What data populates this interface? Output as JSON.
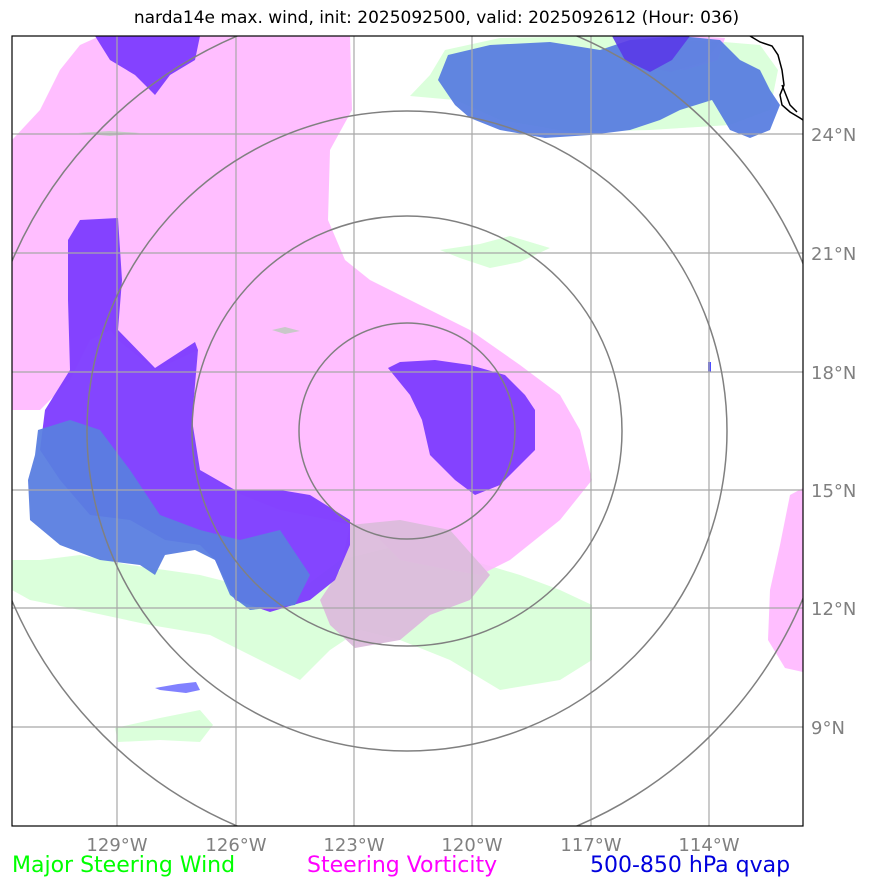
{
  "title": "narda14e max. wind, init: 2025092500, valid: 2025092612 (Hour: 036)",
  "map": {
    "lon_labels": [
      "129°W",
      "126°W",
      "123°W",
      "120°W",
      "117°W",
      "114°W"
    ],
    "lat_labels": [
      "24°N",
      "21°N",
      "18°N",
      "15°N",
      "12°N",
      "9°N"
    ],
    "extent": {
      "lon_min": -131.6,
      "lon_max": -111.6,
      "lat_min": 6.7,
      "lat_max": 26.6
    },
    "range_rings_center": {
      "lon": -122,
      "lat": 16.6
    },
    "layers": [
      {
        "name": "Major Steering Wind",
        "color": "#ccffcc"
      },
      {
        "name": "Steering Vorticity",
        "color": "#ffb3ff"
      },
      {
        "name": "500-850 hPa qvap",
        "color": "#4d4dff"
      }
    ]
  },
  "legend": {
    "wind": {
      "label": "Major Steering Wind",
      "color": "#00ff00"
    },
    "vort": {
      "label": "Steering Vorticity",
      "color": "#ff00ff"
    },
    "qvap": {
      "label": "500-850 hPa qvap",
      "color": "#0000dd"
    }
  }
}
